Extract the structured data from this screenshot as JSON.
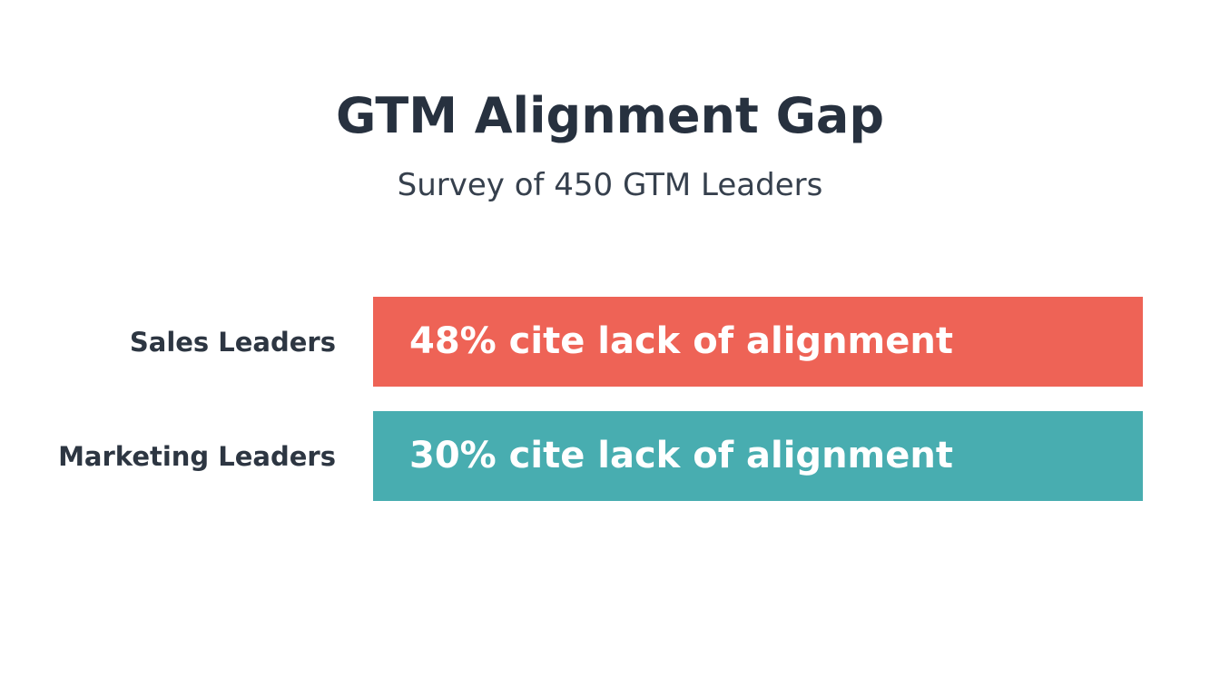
{
  "chart_data": {
    "type": "bar",
    "orientation": "horizontal",
    "title": "GTM Alignment Gap",
    "subtitle": "Survey of 450 GTM Leaders",
    "categories": [
      "Sales Leaders",
      "Marketing Leaders"
    ],
    "values": [
      48,
      30
    ],
    "unit": "%",
    "bar_labels": [
      "48% cite lack of alignment",
      "30% cite lack of alignment"
    ],
    "colors": [
      "#ee6356",
      "#48adb0"
    ],
    "grid": false,
    "legend": "none"
  }
}
